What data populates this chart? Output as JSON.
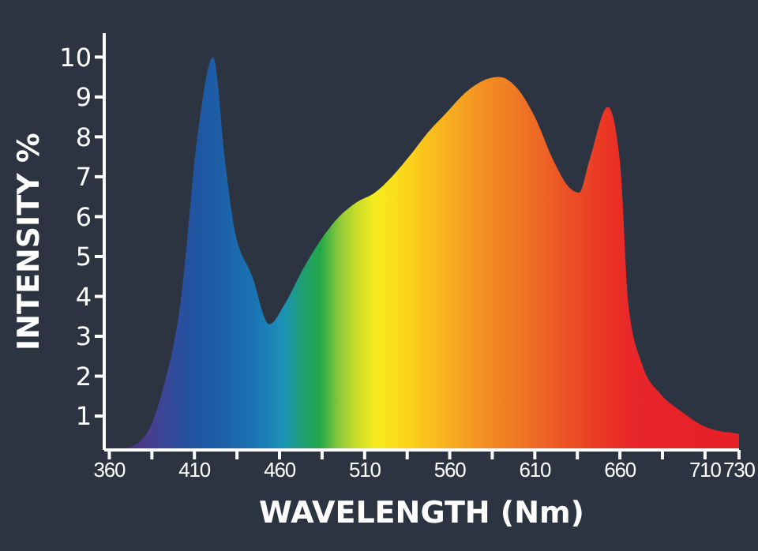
{
  "chart_data": {
    "type": "area",
    "xlabel": "WAVELENGTH (Nm)",
    "ylabel": "INTENSITY %",
    "x": [
      357,
      370,
      381,
      391,
      402,
      412,
      421,
      428,
      433,
      444,
      454,
      463,
      474,
      484,
      495,
      505,
      516,
      526,
      537,
      547,
      558,
      569,
      579,
      589,
      600,
      610,
      621,
      631,
      636,
      642,
      653,
      660,
      665,
      673,
      684,
      695,
      705,
      712,
      719,
      726,
      730
    ],
    "values": [
      0.15,
      0.2,
      0.5,
      1.6,
      3.9,
      8.1,
      10,
      7.4,
      5.8,
      4.5,
      3.3,
      3.8,
      4.7,
      5.4,
      6,
      6.35,
      6.6,
      7,
      7.55,
      8.1,
      8.6,
      9.1,
      9.4,
      9.5,
      9.2,
      8.5,
      7.4,
      6.7,
      6.6,
      7.4,
      8.75,
      7.4,
      3.8,
      2.3,
      1.55,
      1.15,
      0.85,
      0.7,
      0.62,
      0.58,
      0.55
    ],
    "colors": [
      "#3b2b5e",
      "#45357a",
      "#4a3c8c",
      "#3d4596",
      "#2a4f9e",
      "#1f56a2",
      "#1d5ca6",
      "#1d62a9",
      "#1c68ac",
      "#1a72b2",
      "#1a82b8",
      "#1a94b2",
      "#1f9f6e",
      "#22a84a",
      "#8cc83a",
      "#c8dc2a",
      "#f5ec1e",
      "#f8e01c",
      "#fbd21a",
      "#f9c01c",
      "#f7b01f",
      "#f5a020",
      "#f38f22",
      "#f08522",
      "#ef7724",
      "#ee6a25",
      "#ed5c25",
      "#ec4f25",
      "#eb4a25",
      "#eb4225",
      "#ea3424",
      "#e92e26",
      "#e8282a",
      "#e8262a",
      "#e72429",
      "#e62328",
      "#e62228",
      "#e62228",
      "#e62228",
      "#e62228",
      "#e62228"
    ],
    "xlim": [
      357,
      730
    ],
    "xticks": [
      360,
      {
        "value": 385,
        "label": null
      },
      410,
      {
        "value": 435,
        "label": null
      },
      460,
      {
        "value": 485,
        "label": null
      },
      510,
      {
        "value": 535,
        "label": null
      },
      560,
      {
        "value": 585,
        "label": null
      },
      610,
      {
        "value": 635,
        "label": null
      },
      660,
      {
        "value": 685,
        "label": null
      },
      710,
      730
    ],
    "ylim": [
      0.15,
      10.6
    ],
    "yticks": [
      1,
      2,
      3,
      4,
      5,
      6,
      7,
      8,
      9,
      10
    ]
  }
}
